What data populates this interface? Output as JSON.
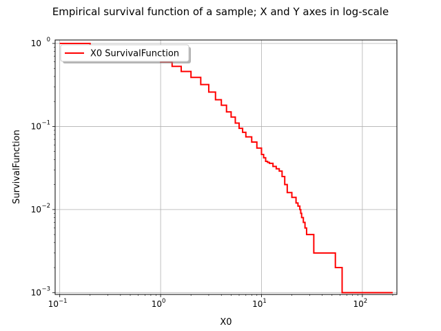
{
  "chart_data": {
    "type": "line",
    "title": "Empirical survival function of a sample; X and Y axes in log-scale",
    "xlabel": "X0",
    "ylabel": "SurvivalFunction",
    "xscale": "log",
    "yscale": "log",
    "xlim": [
      0.09,
      220
    ],
    "ylim": [
      0.00095,
      1.1
    ],
    "grid": true,
    "legend_position": "top-left",
    "x_ticks": [
      {
        "value": 0.1,
        "base": "10",
        "exp": "−1"
      },
      {
        "value": 1,
        "base": "10",
        "exp": "0"
      },
      {
        "value": 10,
        "base": "10",
        "exp": "1"
      },
      {
        "value": 100,
        "base": "10",
        "exp": "2"
      }
    ],
    "y_ticks": [
      {
        "value": 0.001,
        "base": "10",
        "exp": "−3"
      },
      {
        "value": 0.01,
        "base": "10",
        "exp": "−2"
      },
      {
        "value": 0.1,
        "base": "10",
        "exp": "−1"
      },
      {
        "value": 1,
        "base": "10",
        "exp": "0"
      }
    ],
    "series": [
      {
        "name": "X0 SurvivalFunction",
        "color": "#ff0000",
        "step": true,
        "x": [
          0.1,
          0.2,
          0.4,
          0.7,
          1.0,
          1.3,
          1.6,
          2.0,
          2.5,
          3.0,
          3.5,
          4.0,
          4.5,
          5.0,
          5.5,
          6.0,
          6.5,
          7.0,
          8.0,
          9.0,
          10.0,
          10.5,
          11.0,
          11.5,
          12.0,
          13.0,
          14.0,
          15.0,
          16.0,
          17.0,
          18.0,
          20.0,
          22.0,
          23.0,
          24.0,
          24.5,
          25.0,
          26.0,
          27.0,
          28.0,
          33.0,
          54.0,
          63.0,
          200.0
        ],
        "y": [
          1.0,
          0.92,
          0.8,
          0.68,
          0.6,
          0.53,
          0.46,
          0.39,
          0.32,
          0.26,
          0.21,
          0.18,
          0.15,
          0.13,
          0.11,
          0.095,
          0.085,
          0.075,
          0.065,
          0.055,
          0.046,
          0.042,
          0.038,
          0.037,
          0.036,
          0.033,
          0.031,
          0.029,
          0.025,
          0.02,
          0.016,
          0.014,
          0.012,
          0.011,
          0.01,
          0.009,
          0.008,
          0.007,
          0.006,
          0.005,
          0.003,
          0.002,
          0.001,
          0.001
        ]
      }
    ]
  }
}
